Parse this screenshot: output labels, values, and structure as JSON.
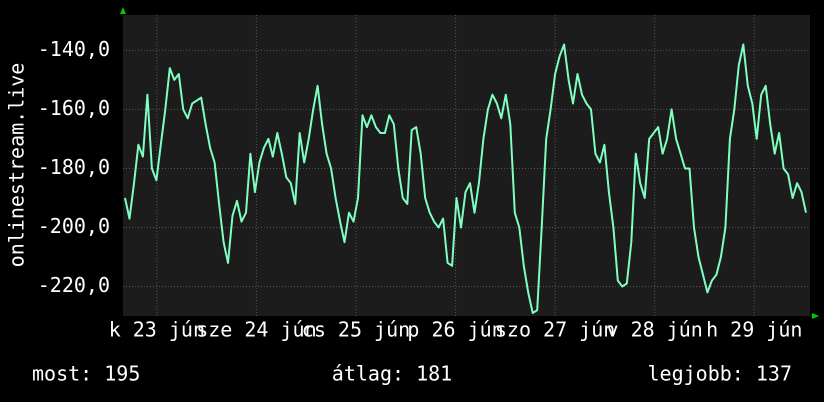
{
  "chart_data": {
    "type": "line",
    "y_label": "onlinestream.live",
    "color": "#7fffbf",
    "grid": true,
    "xlim": [
      22.66,
      29.56
    ],
    "ylim": [
      -230,
      -128
    ],
    "yticks": [
      {
        "value": -140,
        "label": "-140,0"
      },
      {
        "value": -160,
        "label": "-160,0"
      },
      {
        "value": -180,
        "label": "-180,0"
      },
      {
        "value": -200,
        "label": "-200,0"
      },
      {
        "value": -220,
        "label": "-220,0"
      }
    ],
    "xticks": [
      {
        "value": 23,
        "label": "k 23 jún"
      },
      {
        "value": 24,
        "label": "sze 24 jún"
      },
      {
        "value": 25,
        "label": "cs 25 jún"
      },
      {
        "value": 26,
        "label": "p 26 jún"
      },
      {
        "value": 27,
        "label": "szo 27 jún"
      },
      {
        "value": 28,
        "label": "v 28 jún"
      },
      {
        "value": 29,
        "label": "h 29 jún"
      }
    ],
    "x": [
      22.68,
      22.725,
      22.77,
      22.815,
      22.86,
      22.905,
      22.95,
      22.995,
      23.04,
      23.085,
      23.13,
      23.175,
      23.22,
      23.265,
      23.31,
      23.355,
      23.4,
      23.445,
      23.49,
      23.535,
      23.58,
      23.625,
      23.67,
      23.715,
      23.76,
      23.805,
      23.85,
      23.895,
      23.94,
      23.985,
      24.03,
      24.075,
      24.12,
      24.165,
      24.21,
      24.255,
      24.3,
      24.345,
      24.39,
      24.435,
      24.48,
      24.525,
      24.57,
      24.615,
      24.66,
      24.705,
      24.75,
      24.795,
      24.84,
      24.885,
      24.93,
      24.975,
      25.02,
      25.065,
      25.11,
      25.155,
      25.2,
      25.245,
      25.29,
      25.335,
      25.38,
      25.425,
      25.47,
      25.515,
      25.56,
      25.605,
      25.65,
      25.695,
      25.74,
      25.785,
      25.83,
      25.875,
      25.92,
      25.965,
      26.01,
      26.055,
      26.1,
      26.145,
      26.19,
      26.235,
      26.28,
      26.325,
      26.37,
      26.415,
      26.46,
      26.505,
      26.55,
      26.595,
      26.64,
      26.685,
      26.73,
      26.775,
      26.82,
      26.865,
      26.91,
      26.955,
      27,
      27.045,
      27.09,
      27.135,
      27.18,
      27.225,
      27.27,
      27.315,
      27.36,
      27.405,
      27.45,
      27.495,
      27.54,
      27.585,
      27.63,
      27.675,
      27.72,
      27.765,
      27.81,
      27.855,
      27.9,
      27.945,
      27.99,
      28.035,
      28.08,
      28.125,
      28.17,
      28.215,
      28.26,
      28.305,
      28.35,
      28.395,
      28.44,
      28.485,
      28.53,
      28.575,
      28.62,
      28.665,
      28.71,
      28.755,
      28.8,
      28.845,
      28.89,
      28.935,
      28.98,
      29.025,
      29.07,
      29.115,
      29.16,
      29.205,
      29.25,
      29.295,
      29.34,
      29.385,
      29.43,
      29.475,
      29.52
    ],
    "values": [
      -190,
      -197,
      -185,
      -172,
      -176,
      -155,
      -180,
      -184,
      -172,
      -160,
      -146,
      -150,
      -148,
      -160,
      -163,
      -158,
      -157,
      -156,
      -165,
      -173,
      -178,
      -192,
      -205,
      -212,
      -196,
      -191,
      -198,
      -195,
      -175,
      -188,
      -178,
      -173,
      -170,
      -176,
      -168,
      -175,
      -183,
      -185,
      -192,
      -168,
      -178,
      -170,
      -160,
      -152,
      -165,
      -175,
      -180,
      -190,
      -198,
      -205,
      -195,
      -198,
      -190,
      -162,
      -166,
      -162,
      -166,
      -168,
      -168,
      -162,
      -165,
      -180,
      -190,
      -192,
      -167,
      -166,
      -175,
      -190,
      -195,
      -198,
      -200,
      -197,
      -212,
      -213,
      -190,
      -200,
      -188,
      -185,
      -195,
      -185,
      -170,
      -160,
      -155,
      -158,
      -163,
      -155,
      -165,
      -195,
      -200,
      -213,
      -222,
      -229,
      -228,
      -200,
      -170,
      -160,
      -148,
      -142,
      -138,
      -150,
      -158,
      -148,
      -155,
      -158,
      -160,
      -175,
      -178,
      -172,
      -188,
      -200,
      -218,
      -220,
      -219,
      -205,
      -175,
      -185,
      -190,
      -170,
      -168,
      -166,
      -175,
      -170,
      -160,
      -170,
      -175,
      -180,
      -180,
      -200,
      -210,
      -216,
      -222,
      -218,
      -216,
      -210,
      -200,
      -170,
      -160,
      -145,
      -138,
      -152,
      -158,
      -170,
      -155,
      -152,
      -165,
      -175,
      -168,
      -180,
      -182,
      -190,
      -185,
      -188,
      -195
    ],
    "footer": [
      "most: 195",
      "átlag: 181",
      "legjobb: 137"
    ]
  }
}
